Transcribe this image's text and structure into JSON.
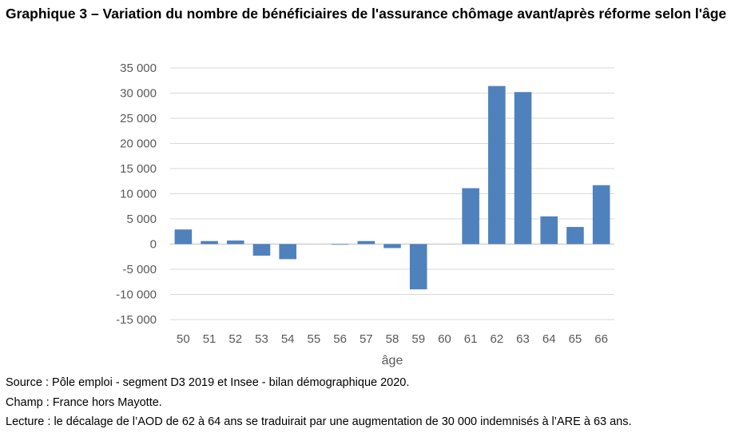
{
  "title": "Graphique 3 – Variation du nombre de bénéficiaires de l'assurance chômage avant/après réforme selon l'âge",
  "chart_data": {
    "type": "bar",
    "title": "Graphique 3 – Variation du nombre de bénéficiaires de l'assurance chômage avant/après réforme selon l'âge",
    "xlabel": "âge",
    "ylabel": "",
    "categories": [
      "50",
      "51",
      "52",
      "53",
      "54",
      "55",
      "56",
      "57",
      "58",
      "59",
      "60",
      "61",
      "62",
      "63",
      "64",
      "65",
      "66"
    ],
    "values": [
      2900,
      600,
      700,
      -2300,
      -3000,
      0,
      -100,
      600,
      -800,
      -9000,
      0,
      11100,
      31400,
      30200,
      5500,
      3400,
      11700
    ],
    "ylim": [
      -15000,
      35000
    ],
    "yticks": [
      35000,
      30000,
      25000,
      20000,
      15000,
      10000,
      5000,
      0,
      -5000,
      -10000,
      -15000
    ],
    "ytick_labels": [
      "35 000",
      "30 000",
      "25 000",
      "20 000",
      "15 000",
      "10 000",
      "5 000",
      "0",
      "-5 000",
      "-10 000",
      "-15 000"
    ],
    "grid": true,
    "legend": "none",
    "bar_color": "#4f81bd",
    "grid_color": "#d9d9d9"
  },
  "notes": {
    "source": "Source : Pôle emploi - segment D3 2019 et Insee - bilan démographique 2020.",
    "champ": "Champ : France hors Mayotte.",
    "lecture": "Lecture : le décalage de l’AOD de 62 à 64 ans se traduirait par une augmentation de 30 000 indemnisés à l’ARE à 63 ans."
  }
}
